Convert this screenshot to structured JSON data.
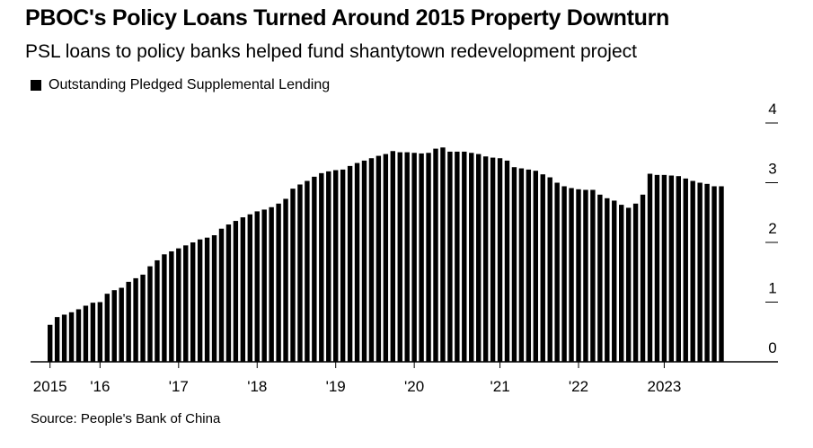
{
  "title": "PBOC's Policy Loans Turned Around 2015 Property Downturn",
  "subtitle": "PSL loans to policy banks helped fund shantytown redevelopment project",
  "source": "Source: People's Bank of China",
  "colors": {
    "bar": "#000000",
    "axis": "#000000",
    "background": "#ffffff"
  },
  "chart_data": {
    "type": "bar",
    "legend": {
      "position": "top-left",
      "entries": [
        "Outstanding Pledged Supplemental Lending"
      ]
    },
    "series": [
      {
        "name": "Outstanding Pledged Supplemental Lending",
        "values": [
          0.62,
          0.75,
          0.79,
          0.83,
          0.88,
          0.94,
          0.99,
          1.0,
          1.14,
          1.2,
          1.24,
          1.34,
          1.4,
          1.46,
          1.6,
          1.7,
          1.8,
          1.85,
          1.9,
          1.95,
          2.0,
          2.05,
          2.08,
          2.12,
          2.23,
          2.3,
          2.36,
          2.42,
          2.47,
          2.52,
          2.55,
          2.59,
          2.65,
          2.73,
          2.9,
          2.97,
          3.03,
          3.1,
          3.16,
          3.19,
          3.21,
          3.22,
          3.28,
          3.33,
          3.37,
          3.41,
          3.45,
          3.48,
          3.53,
          3.51,
          3.51,
          3.5,
          3.49,
          3.5,
          3.57,
          3.59,
          3.52,
          3.52,
          3.52,
          3.5,
          3.48,
          3.44,
          3.42,
          3.41,
          3.37,
          3.26,
          3.24,
          3.22,
          3.2,
          3.14,
          3.09,
          3.0,
          2.94,
          2.91,
          2.89,
          2.88,
          2.88,
          2.8,
          2.74,
          2.7,
          2.63,
          2.58,
          2.65,
          2.8,
          3.15,
          3.13,
          3.13,
          3.12,
          3.11,
          3.07,
          3.03,
          3.0,
          2.98,
          2.94,
          2.94
        ]
      }
    ],
    "x_labels": [
      {
        "label": "2015",
        "index": 0
      },
      {
        "label": "'16",
        "index": 7
      },
      {
        "label": "'17",
        "index": 18
      },
      {
        "label": "'18",
        "index": 29
      },
      {
        "label": "'19",
        "index": 40
      },
      {
        "label": "'20",
        "index": 51
      },
      {
        "label": "'21",
        "index": 63
      },
      {
        "label": "'22",
        "index": 74
      },
      {
        "label": "2023",
        "index": 86
      }
    ],
    "y_ticks": [
      "0",
      "1",
      "2",
      "3",
      "4"
    ],
    "ylim": [
      0,
      4
    ],
    "grid": false,
    "y_axis_side": "right"
  }
}
